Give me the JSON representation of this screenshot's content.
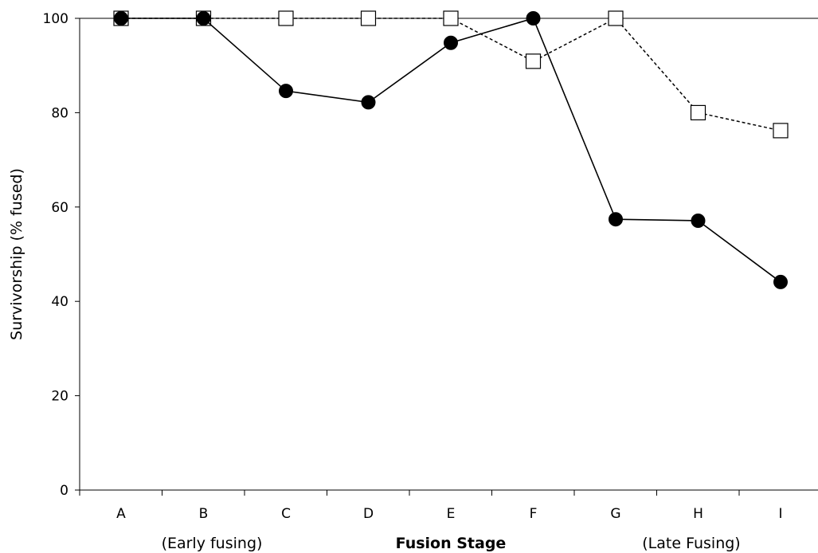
{
  "chart_data": {
    "type": "line",
    "categories": [
      "A",
      "B",
      "C",
      "D",
      "E",
      "F",
      "G",
      "H",
      "I"
    ],
    "ylabel": "Survivorship (% fused)",
    "xlabel": "Fusion Stage",
    "x_sublabels": {
      "left": "(Early fusing)",
      "right": "(Late Fusing)"
    },
    "ylim": [
      0,
      100
    ],
    "yticks": [
      0,
      20,
      40,
      60,
      80,
      100
    ],
    "grid": false,
    "series": [
      {
        "marker": "filled-circle",
        "line_style": "solid",
        "color": "#000000",
        "values": [
          100,
          100,
          84.6,
          82.2,
          94.8,
          100,
          57.4,
          57.1,
          44.1
        ]
      },
      {
        "marker": "open-square",
        "line_style": "dashed",
        "color": "#000000",
        "values": [
          100,
          100,
          100,
          100,
          100,
          90.9,
          100,
          80,
          76.2
        ]
      }
    ]
  }
}
